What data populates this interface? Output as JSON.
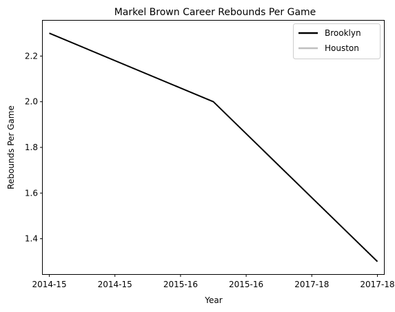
{
  "chart_data": {
    "type": "line",
    "title": "Markel Brown Career Rebounds Per Game",
    "xlabel": "Year",
    "ylabel": "Rebounds Per Game",
    "x_tick_labels": [
      "2014-15",
      "2014-15",
      "2015-16",
      "2015-16",
      "2017-18",
      "2017-18"
    ],
    "x_range": [
      -0.1,
      5.1
    ],
    "ylim": [
      1.245,
      2.355
    ],
    "y_ticks": [
      1.4,
      1.6,
      1.8,
      2.0,
      2.2
    ],
    "y_tick_labels": [
      "1.4",
      "1.6",
      "1.8",
      "2.0",
      "2.2"
    ],
    "grid": false,
    "legend_position": "top-right",
    "series": [
      {
        "name": "Brooklyn",
        "color": "#000000",
        "x": [
          0,
          2.5,
          5
        ],
        "y": [
          2.3,
          2.0,
          1.3
        ]
      },
      {
        "name": "Houston",
        "color": "#bfbfbf",
        "x": [],
        "y": []
      }
    ]
  }
}
